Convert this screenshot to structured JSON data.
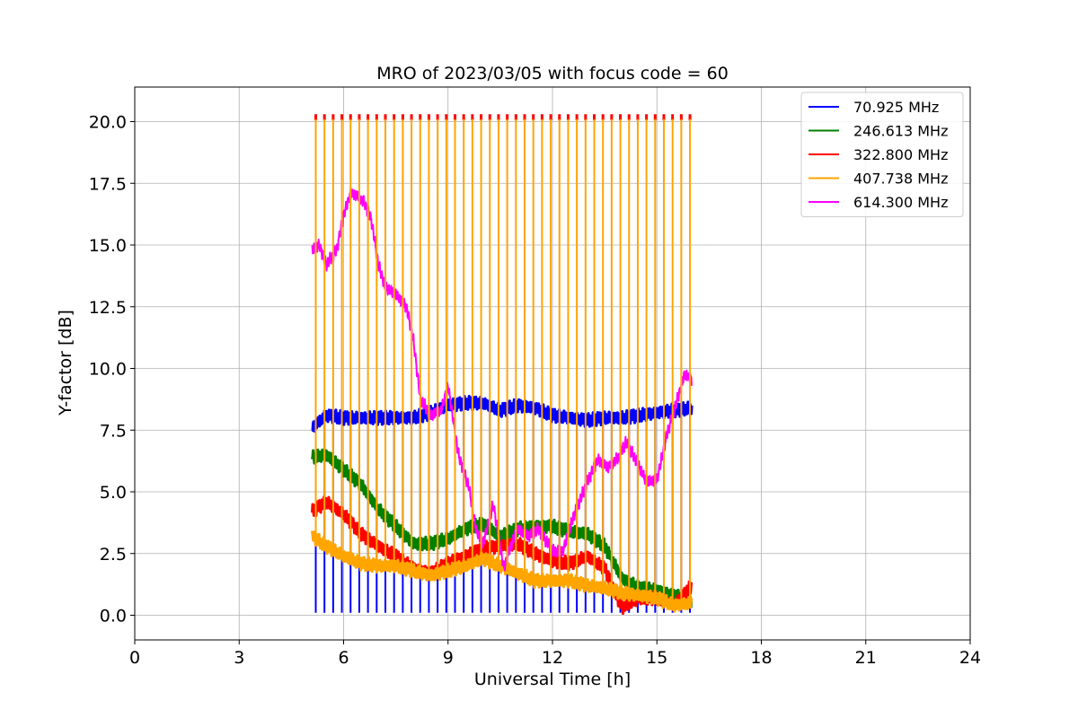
{
  "chart_data": {
    "type": "line",
    "title": "MRO of 2023/03/05 with focus code = 60",
    "xlabel": "Universal Time [h]",
    "ylabel": "Y-factor [dB]",
    "xlim": [
      0,
      24
    ],
    "ylim": [
      -1.0,
      21.4
    ],
    "xticks": [
      "0",
      "3",
      "6",
      "9",
      "12",
      "15",
      "18",
      "21",
      "24"
    ],
    "yticks": [
      "0.0",
      "2.5",
      "5.0",
      "7.5",
      "10.0",
      "12.5",
      "15.0",
      "17.5",
      "20.0"
    ],
    "grid": true,
    "legend_position": "top-right",
    "calibration_spikes": {
      "start_h": 5.2,
      "end_h": 16.0,
      "interval_h": 0.25,
      "peak_db": 20.3
    },
    "series": [
      {
        "name": " 70.925 MHz",
        "color": "#0000ff",
        "baseline": 0.1,
        "x": [
          5.1,
          5.5,
          6.0,
          6.5,
          7.0,
          7.5,
          8.0,
          8.5,
          9.0,
          9.5,
          10.0,
          10.5,
          11.0,
          11.5,
          12.0,
          12.5,
          13.0,
          13.5,
          14.0,
          14.5,
          15.0,
          15.5,
          16.0
        ],
        "y": [
          7.6,
          8.1,
          8.0,
          8.0,
          8.0,
          8.0,
          8.0,
          8.2,
          8.5,
          8.6,
          8.6,
          8.3,
          8.5,
          8.4,
          8.1,
          8.0,
          7.9,
          8.0,
          8.0,
          8.1,
          8.2,
          8.3,
          8.4
        ]
      },
      {
        "name": "246.613 MHz",
        "color": "#008000",
        "baseline": null,
        "x": [
          5.1,
          5.5,
          6.0,
          6.5,
          7.0,
          7.5,
          8.0,
          8.5,
          9.0,
          9.5,
          10.0,
          10.5,
          11.0,
          11.5,
          12.0,
          12.5,
          13.0,
          13.5,
          14.0,
          14.5,
          15.0,
          15.5,
          16.0
        ],
        "y": [
          6.4,
          6.5,
          5.9,
          5.3,
          4.3,
          3.6,
          2.9,
          2.9,
          3.1,
          3.5,
          3.7,
          3.2,
          3.5,
          3.6,
          3.6,
          3.4,
          3.3,
          2.8,
          1.5,
          1.1,
          1.0,
          0.8,
          0.6
        ]
      },
      {
        "name": "322.800 MHz",
        "color": "#ff0000",
        "baseline": null,
        "x": [
          5.1,
          5.5,
          6.0,
          6.5,
          7.0,
          7.5,
          8.0,
          8.5,
          9.0,
          9.5,
          10.0,
          10.5,
          11.0,
          11.5,
          12.0,
          12.5,
          13.0,
          13.5,
          14.0,
          14.5,
          15.0,
          15.5,
          16.0
        ],
        "y": [
          4.2,
          4.6,
          4.1,
          3.3,
          2.8,
          2.4,
          1.9,
          1.7,
          2.1,
          2.4,
          2.7,
          2.8,
          2.9,
          2.5,
          2.2,
          2.1,
          2.4,
          1.9,
          0.3,
          0.7,
          0.7,
          0.4,
          1.2
        ]
      },
      {
        "name": "407.738 MHz",
        "color": "#ffa500",
        "baseline": null,
        "x": [
          5.1,
          5.5,
          6.0,
          6.5,
          7.0,
          7.5,
          8.0,
          8.5,
          9.0,
          9.5,
          10.0,
          10.5,
          11.0,
          11.5,
          12.0,
          12.5,
          13.0,
          13.5,
          14.0,
          14.5,
          15.0,
          15.5,
          16.0
        ],
        "y": [
          3.2,
          2.8,
          2.4,
          2.1,
          2.0,
          2.0,
          1.8,
          1.6,
          1.8,
          2.0,
          2.3,
          2.0,
          1.7,
          1.4,
          1.4,
          1.4,
          1.2,
          1.1,
          0.9,
          0.8,
          0.7,
          0.4,
          0.5
        ]
      },
      {
        "name": "614.300 MHz",
        "color": "#ff00ff",
        "baseline": null,
        "x": [
          5.1,
          5.3,
          5.5,
          5.8,
          6.0,
          6.2,
          6.4,
          6.6,
          6.8,
          7.0,
          7.2,
          7.5,
          7.8,
          8.0,
          8.2,
          8.5,
          8.8,
          9.0,
          9.3,
          9.6,
          9.8,
          10.0,
          10.3,
          10.6,
          10.8,
          11.0,
          11.3,
          11.6,
          12.0,
          12.3,
          12.6,
          13.0,
          13.3,
          13.6,
          13.9,
          14.1,
          14.4,
          14.7,
          15.0,
          15.3,
          15.6,
          15.8,
          16.0
        ],
        "y": [
          14.8,
          15.0,
          14.2,
          14.8,
          16.2,
          17.1,
          17.0,
          16.7,
          16.0,
          14.2,
          13.3,
          13.0,
          12.5,
          11.2,
          8.8,
          8.1,
          8.3,
          9.3,
          6.5,
          5.2,
          3.5,
          2.9,
          4.5,
          1.9,
          2.8,
          3.5,
          3.2,
          3.5,
          2.6,
          2.6,
          4.0,
          5.4,
          6.3,
          6.0,
          6.4,
          7.0,
          6.3,
          5.4,
          5.5,
          7.4,
          8.8,
          9.8,
          9.5
        ]
      }
    ]
  }
}
